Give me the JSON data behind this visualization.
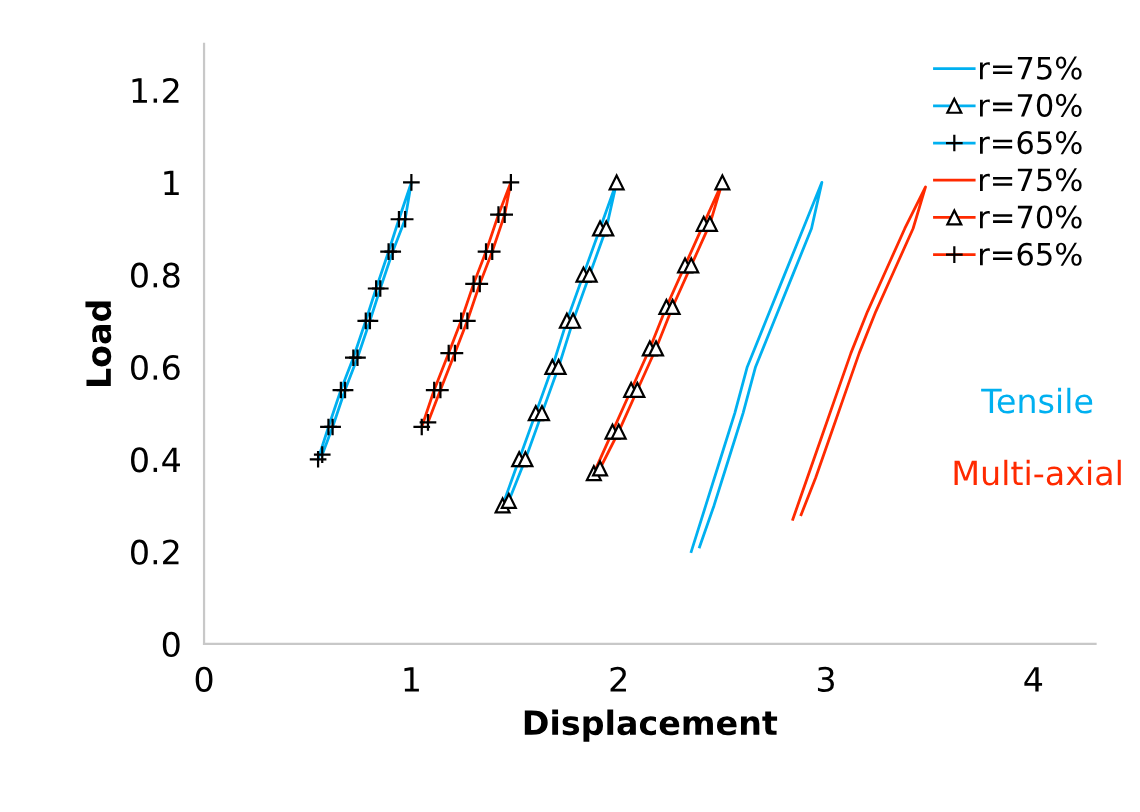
{
  "chart_data": {
    "type": "line",
    "xlabel": "Displacement",
    "ylabel": "Load",
    "xlim": [
      0,
      4.3
    ],
    "xticks": [
      0,
      1,
      2,
      3,
      4
    ],
    "ylim": [
      0,
      1.3
    ],
    "yticks": [
      0,
      0.2,
      0.4,
      0.6,
      0.8,
      1,
      1.2
    ],
    "grid": false,
    "legend": "top right",
    "line_style": "solid",
    "annotations": [
      "Tensile",
      "Multi-axial"
    ],
    "series": [
      {
        "name": "r=75%",
        "color": "#00b0f0",
        "marker": "none",
        "x": [
          2.35,
          2.42,
          2.49,
          2.56,
          2.62,
          2.71,
          2.8,
          2.89,
          2.98,
          2.93,
          2.84,
          2.75,
          2.66,
          2.6,
          2.53,
          2.46,
          2.39
        ],
        "values": [
          0.2,
          0.3,
          0.4,
          0.5,
          0.6,
          0.7,
          0.8,
          0.9,
          1.0,
          0.9,
          0.8,
          0.7,
          0.6,
          0.5,
          0.4,
          0.3,
          0.21
        ]
      },
      {
        "name": "r=70%",
        "color": "#00b0f0",
        "marker": "triangle",
        "x": [
          1.44,
          1.52,
          1.6,
          1.68,
          1.75,
          1.83,
          1.91,
          1.99,
          1.94,
          1.86,
          1.78,
          1.71,
          1.63,
          1.55,
          1.47
        ],
        "values": [
          0.3,
          0.4,
          0.5,
          0.6,
          0.7,
          0.8,
          0.9,
          1.0,
          0.9,
          0.8,
          0.7,
          0.6,
          0.5,
          0.4,
          0.31
        ]
      },
      {
        "name": "r=65%",
        "color": "#00b0f0",
        "marker": "cross",
        "x": [
          0.55,
          0.6,
          0.66,
          0.72,
          0.78,
          0.83,
          0.89,
          0.94,
          1.0,
          0.97,
          0.91,
          0.85,
          0.8,
          0.74,
          0.68,
          0.62,
          0.57
        ],
        "values": [
          0.4,
          0.47,
          0.55,
          0.62,
          0.7,
          0.77,
          0.85,
          0.92,
          1.0,
          0.92,
          0.85,
          0.77,
          0.7,
          0.62,
          0.55,
          0.47,
          0.41
        ]
      },
      {
        "name": "r=75%",
        "color": "#ff2a00",
        "marker": "none",
        "x": [
          2.84,
          2.91,
          2.98,
          3.05,
          3.12,
          3.2,
          3.29,
          3.38,
          3.48,
          3.42,
          3.33,
          3.24,
          3.16,
          3.09,
          3.02,
          2.95,
          2.88
        ],
        "values": [
          0.27,
          0.36,
          0.45,
          0.54,
          0.63,
          0.72,
          0.81,
          0.9,
          0.99,
          0.9,
          0.81,
          0.72,
          0.63,
          0.54,
          0.45,
          0.36,
          0.28
        ]
      },
      {
        "name": "r=70%",
        "color": "#ff2a00",
        "marker": "triangle",
        "x": [
          1.88,
          1.97,
          2.06,
          2.15,
          2.23,
          2.32,
          2.41,
          2.5,
          2.44,
          2.35,
          2.26,
          2.18,
          2.09,
          2.0,
          1.91
        ],
        "values": [
          0.37,
          0.46,
          0.55,
          0.64,
          0.73,
          0.82,
          0.91,
          1.0,
          0.91,
          0.82,
          0.73,
          0.64,
          0.55,
          0.46,
          0.38
        ]
      },
      {
        "name": "r=65%",
        "color": "#ff2a00",
        "marker": "cross",
        "x": [
          1.05,
          1.11,
          1.18,
          1.24,
          1.3,
          1.36,
          1.42,
          1.48,
          1.45,
          1.39,
          1.33,
          1.27,
          1.21,
          1.14,
          1.08
        ],
        "values": [
          0.47,
          0.55,
          0.63,
          0.7,
          0.78,
          0.85,
          0.93,
          1.0,
          0.93,
          0.85,
          0.78,
          0.7,
          0.63,
          0.55,
          0.48
        ]
      }
    ]
  }
}
